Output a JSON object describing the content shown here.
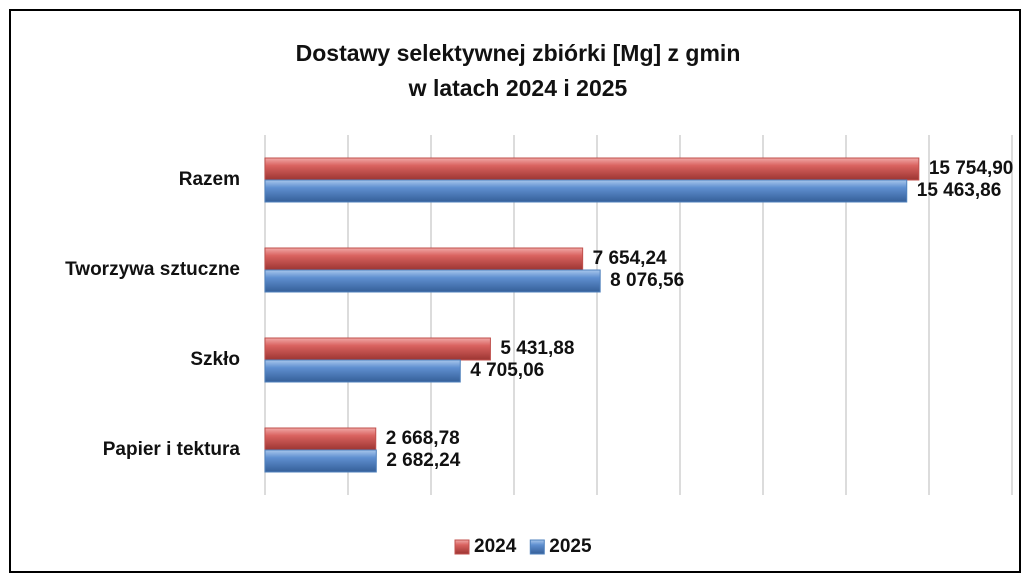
{
  "chart_data": {
    "type": "hbar",
    "title": [
      "Dostawy selektywnej zbiórki [Mg] z gmin",
      "w latach 2024 i 2025"
    ],
    "categories": [
      "Razem",
      "Tworzywa sztuczne",
      "Szkło",
      "Papier i tektura"
    ],
    "series": [
      {
        "name": "2024",
        "color": "#c0504d",
        "values": [
          15754.9,
          7654.24,
          5431.88,
          2668.78
        ],
        "value_labels": [
          "15 754,90",
          "7 654,24",
          "5 431,88",
          "2 668,78"
        ]
      },
      {
        "name": "2025",
        "color": "#4f81bd",
        "values": [
          15463.86,
          8076.56,
          4705.06,
          2682.24
        ],
        "value_labels": [
          "15 463,86",
          "8 076,56",
          "4 705,06",
          "2 682,24"
        ]
      }
    ],
    "xlim": [
      0,
      18000
    ],
    "xticks": [
      0,
      2000,
      4000,
      6000,
      8000,
      10000,
      12000,
      14000,
      16000,
      18000
    ],
    "grid": true,
    "legend": "bottom"
  }
}
